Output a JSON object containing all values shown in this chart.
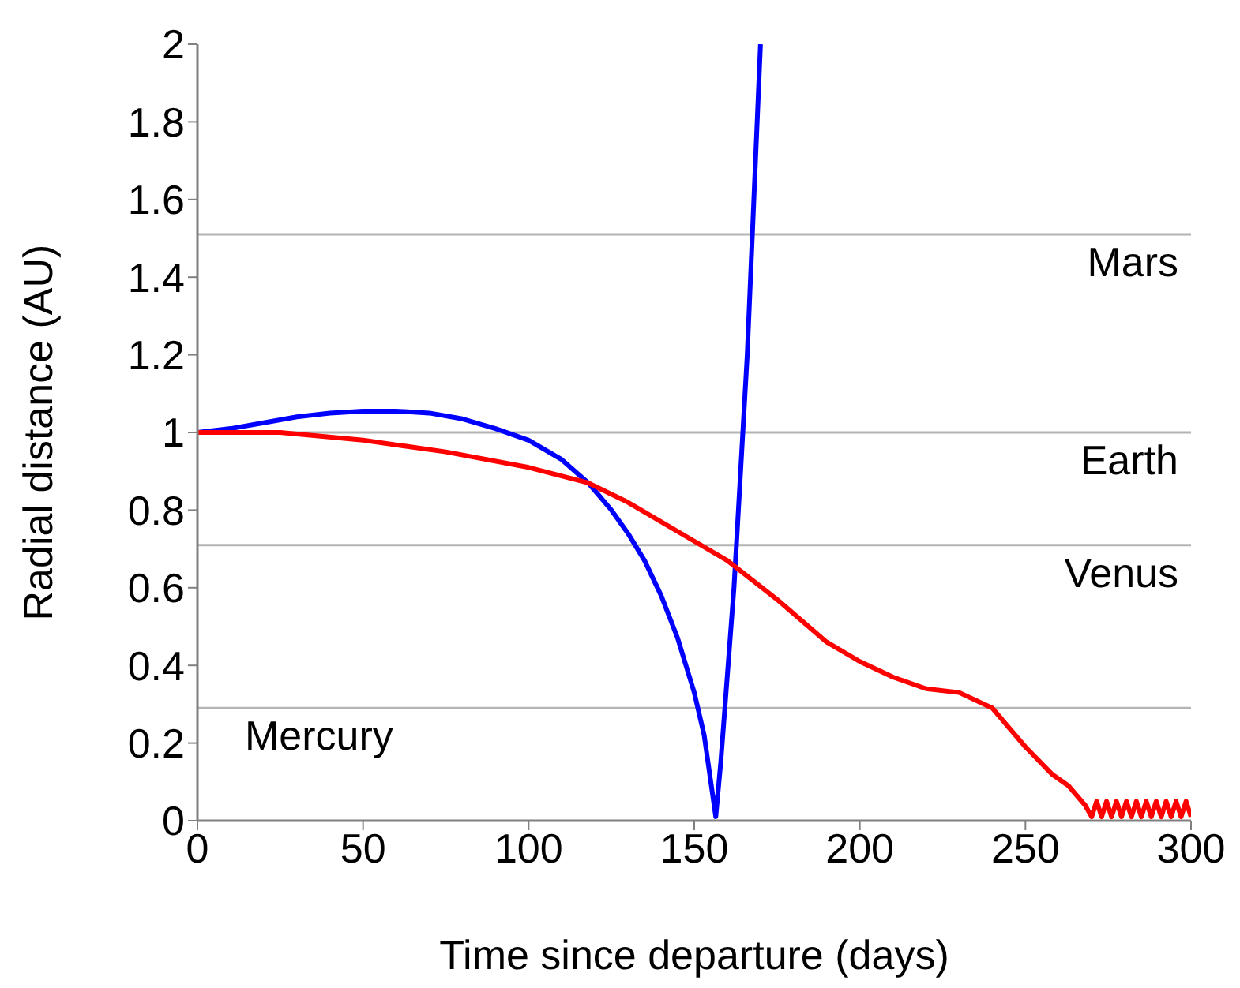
{
  "chart_data": {
    "type": "line",
    "xlabel": "Time since departure (days)",
    "ylabel": "Radial distance (AU)",
    "xlim": [
      0,
      300
    ],
    "xticks": [
      0,
      50,
      100,
      150,
      200,
      250,
      300
    ],
    "ylim": [
      0,
      2
    ],
    "yticks": [
      0,
      0.2,
      0.4,
      0.6,
      0.8,
      1,
      1.2,
      1.4,
      1.6,
      1.8,
      2
    ],
    "marker": "none",
    "line_style": "solid",
    "series": [
      {
        "color": "#0000ff",
        "x": [
          0,
          10,
          20,
          30,
          40,
          50,
          60,
          70,
          80,
          90,
          100,
          110,
          118,
          125,
          130,
          135,
          140,
          145,
          150,
          153,
          155,
          156.5,
          158,
          162,
          166,
          170
        ],
        "values": [
          1,
          1.01,
          1.025,
          1.04,
          1.05,
          1.055,
          1.055,
          1.05,
          1.035,
          1.01,
          0.98,
          0.93,
          0.87,
          0.8,
          0.74,
          0.67,
          0.58,
          0.47,
          0.33,
          0.22,
          0.1,
          0.01,
          0.15,
          0.6,
          1.2,
          2
        ]
      },
      {
        "color": "#ff0000",
        "x": [
          0,
          25,
          50,
          75,
          100,
          118,
          130,
          150,
          160,
          175,
          190,
          200,
          210,
          220,
          230,
          240,
          250,
          258,
          263,
          268,
          270,
          271.5,
          273,
          274.5,
          276,
          277.5,
          279,
          280.5,
          282,
          283.5,
          285,
          286.5,
          288,
          289.5,
          291,
          292.5,
          294,
          295.5,
          297,
          298.5,
          300
        ],
        "values": [
          1,
          1,
          0.98,
          0.95,
          0.91,
          0.87,
          0.82,
          0.72,
          0.67,
          0.57,
          0.46,
          0.41,
          0.37,
          0.34,
          0.33,
          0.29,
          0.19,
          0.12,
          0.09,
          0.04,
          0.01,
          0.05,
          0.01,
          0.05,
          0.01,
          0.05,
          0.01,
          0.05,
          0.01,
          0.05,
          0.01,
          0.05,
          0.01,
          0.05,
          0.01,
          0.05,
          0.01,
          0.05,
          0.01,
          0.05,
          0.01
        ]
      }
    ],
    "ref_lines": [
      {
        "axis": "y",
        "value": 1.51,
        "label": "Mars",
        "color": "#b4b4b4"
      },
      {
        "axis": "y",
        "value": 1,
        "label": "Earth",
        "color": "#b4b4b4"
      },
      {
        "axis": "y",
        "value": 0.71,
        "label": "Venus",
        "color": "#b4b4b4"
      },
      {
        "axis": "y",
        "value": 0.29,
        "label": "Mercury",
        "color": "#b4b4b4"
      }
    ]
  }
}
